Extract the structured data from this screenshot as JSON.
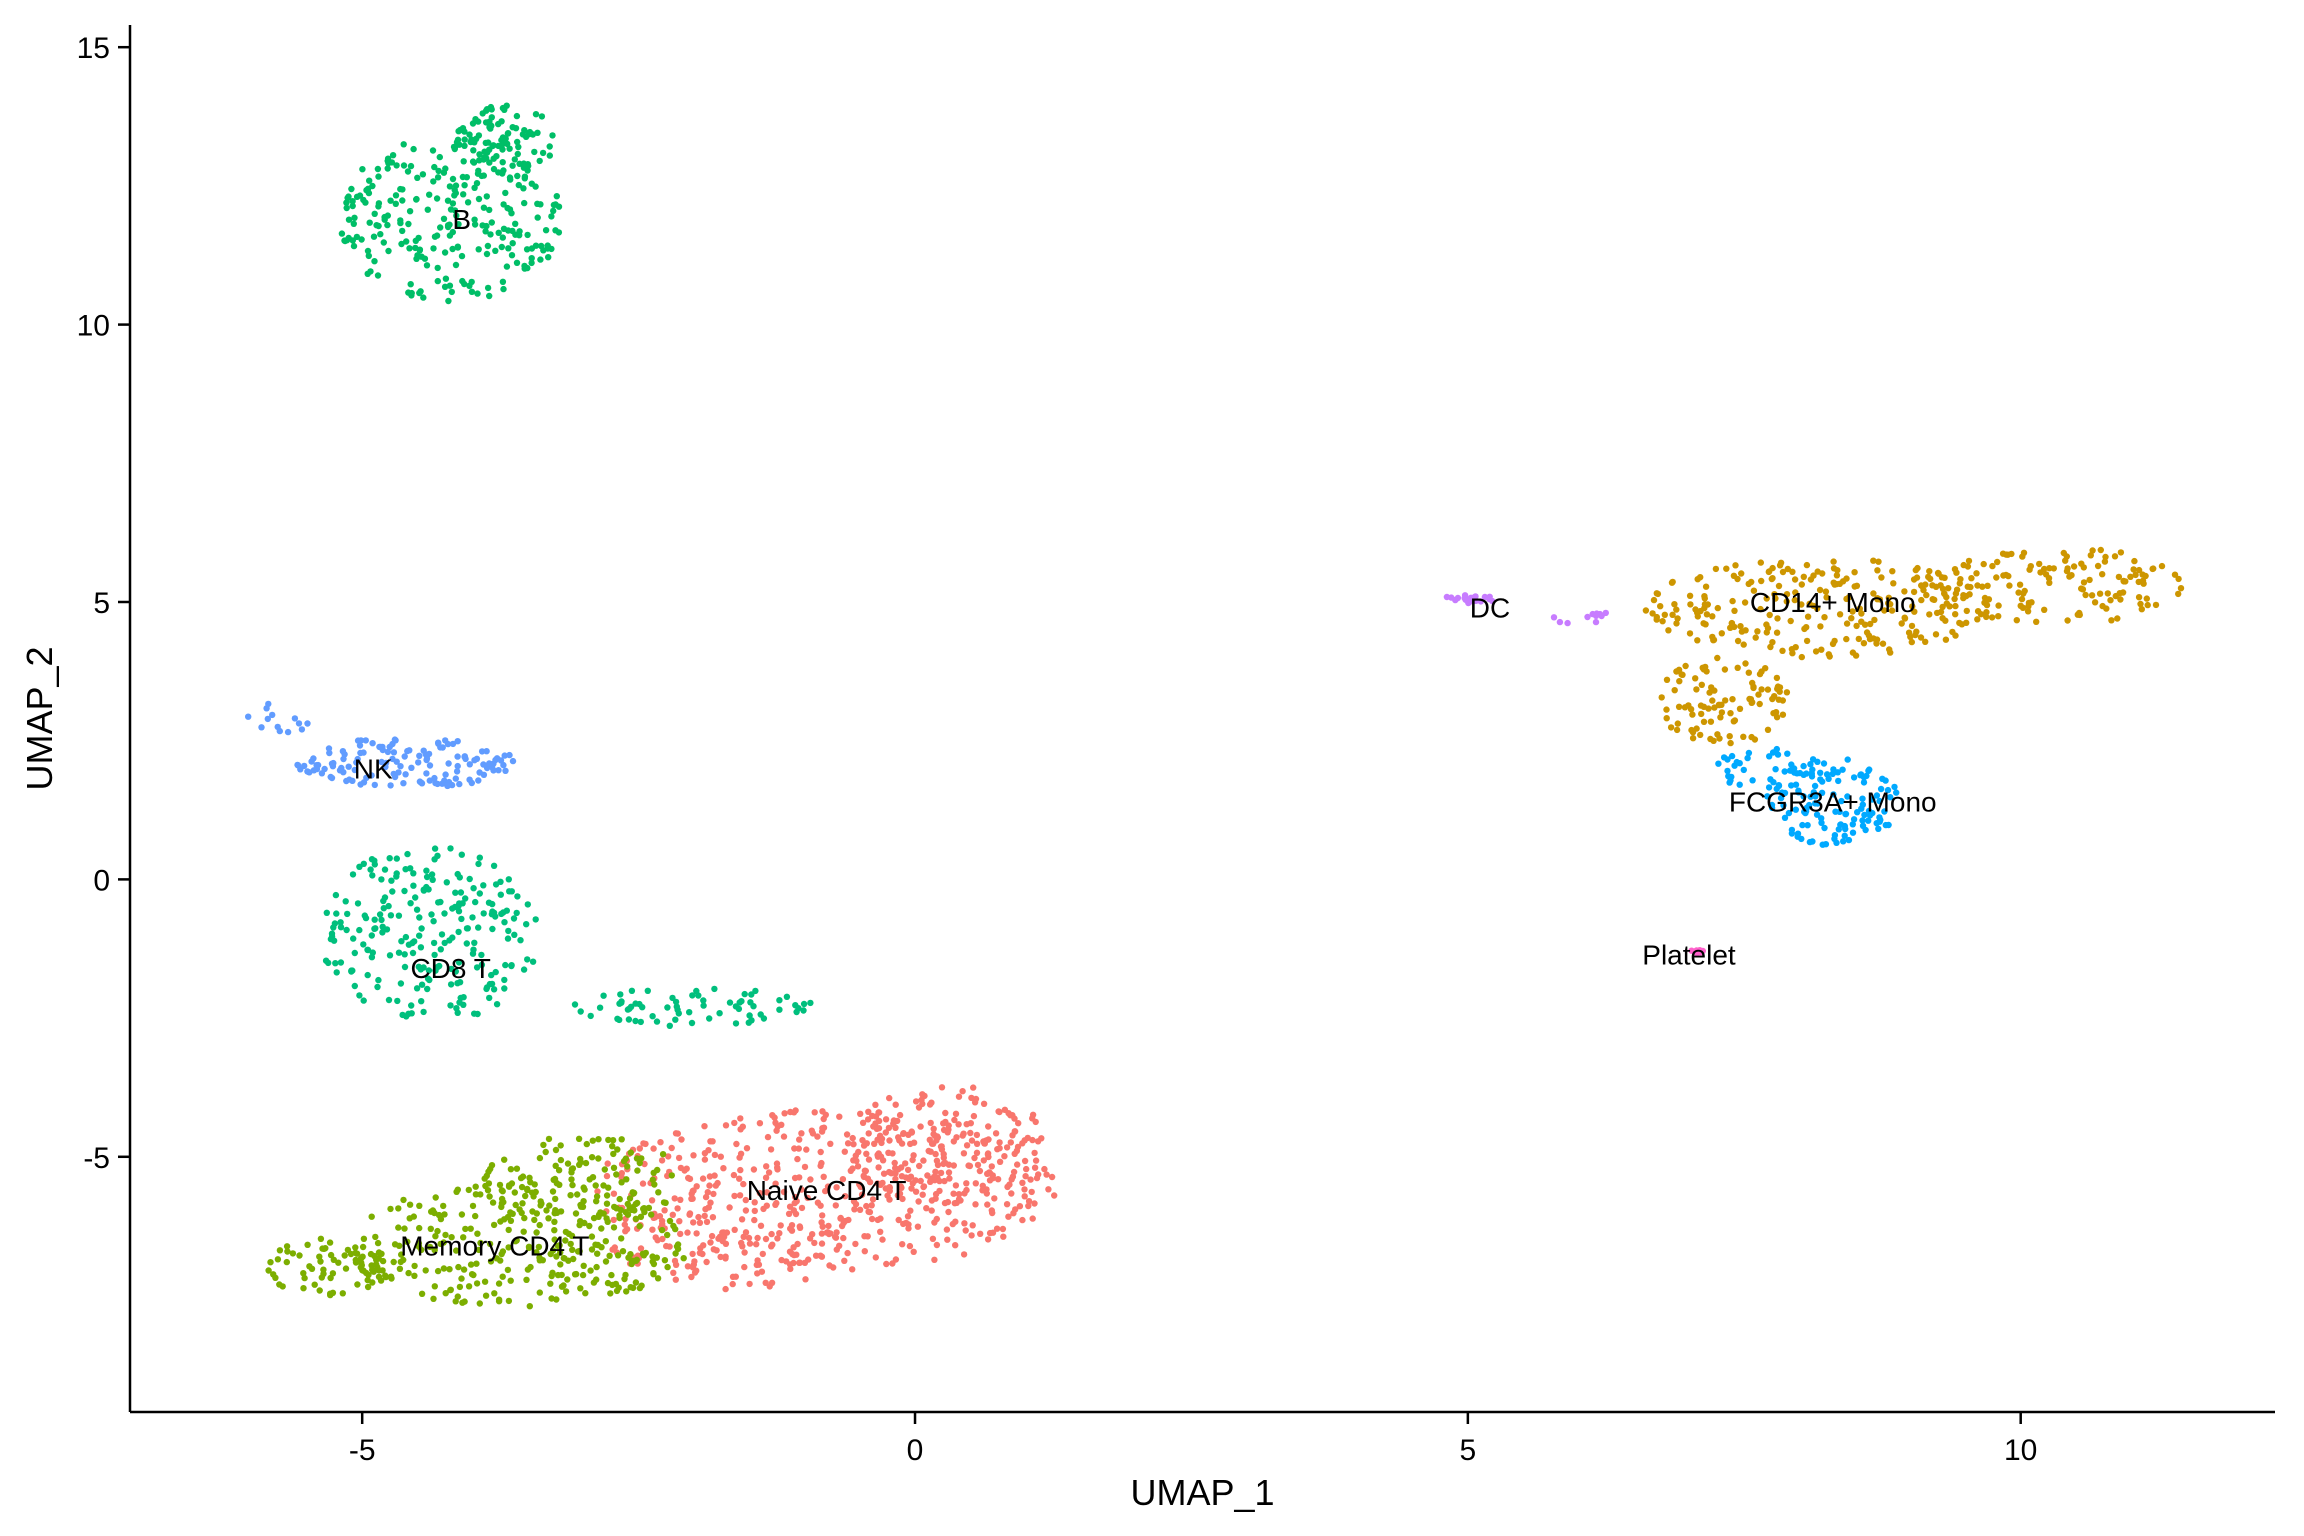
{
  "chart_data": {
    "type": "scatter",
    "title": "",
    "xlabel": "UMAP_1",
    "ylabel": "UMAP_2",
    "xlim": [
      -7.1,
      12.3
    ],
    "ylim": [
      -9.6,
      15.4
    ],
    "xticks": [
      {
        "value": -5,
        "label": "-5"
      },
      {
        "value": 0,
        "label": "0"
      },
      {
        "value": 5,
        "label": "5"
      },
      {
        "value": 10,
        "label": "10"
      }
    ],
    "yticks": [
      {
        "value": -5,
        "label": "-5"
      },
      {
        "value": 0,
        "label": "0"
      },
      {
        "value": 5,
        "label": "5"
      },
      {
        "value": 10,
        "label": "10"
      },
      {
        "value": 15,
        "label": "15"
      }
    ],
    "grid": false,
    "legend": "none",
    "series": [
      {
        "name": "Naive CD4 T",
        "color": "#F8766D",
        "label_at": [
          -0.8,
          -5.6
        ],
        "count": 700,
        "blobs": [
          {
            "cx": -0.8,
            "cy": -5.6,
            "rx": 2.1,
            "ry": 1.45,
            "w": 0.6
          },
          {
            "cx": 0.3,
            "cy": -4.8,
            "rx": 0.9,
            "ry": 1.1,
            "w": 0.25
          },
          {
            "cx": -1.6,
            "cy": -6.5,
            "rx": 1.2,
            "ry": 0.9,
            "w": 0.15
          }
        ]
      },
      {
        "name": "Memory CD4 T",
        "color": "#7CAE00",
        "label_at": [
          -3.8,
          -6.6
        ],
        "count": 480,
        "blobs": [
          {
            "cx": -3.6,
            "cy": -6.6,
            "rx": 1.55,
            "ry": 1.1,
            "w": 0.65
          },
          {
            "cx": -5.3,
            "cy": -7.0,
            "rx": 0.55,
            "ry": 0.55,
            "w": 0.12
          },
          {
            "cx": -3.0,
            "cy": -5.4,
            "rx": 0.9,
            "ry": 0.8,
            "w": 0.23
          }
        ]
      },
      {
        "name": "CD14+ Mono",
        "color": "#CD9600",
        "label_at": [
          8.3,
          5.0
        ],
        "count": 480,
        "blobs": [
          {
            "cx": 8.2,
            "cy": 4.9,
            "rx": 1.6,
            "ry": 0.9,
            "w": 0.5
          },
          {
            "cx": 10.3,
            "cy": 5.3,
            "rx": 1.2,
            "ry": 0.7,
            "w": 0.3
          },
          {
            "cx": 7.3,
            "cy": 3.2,
            "rx": 0.6,
            "ry": 0.8,
            "w": 0.2
          }
        ]
      },
      {
        "name": "B",
        "color": "#00BE67",
        "label_at": [
          -4.1,
          11.9
        ],
        "count": 340,
        "blobs": [
          {
            "cx": -4.2,
            "cy": 11.9,
            "rx": 1.0,
            "ry": 1.5,
            "w": 0.7
          },
          {
            "cx": -3.7,
            "cy": 13.3,
            "rx": 0.45,
            "ry": 0.7,
            "w": 0.3
          }
        ]
      },
      {
        "name": "CD8 T",
        "color": "#00BF7D",
        "label_at": [
          -4.2,
          -1.6
        ],
        "count": 300,
        "blobs": [
          {
            "cx": -4.4,
            "cy": -1.0,
            "rx": 1.0,
            "ry": 1.6,
            "w": 0.75
          },
          {
            "cx": -2.0,
            "cy": -2.3,
            "rx": 1.1,
            "ry": 0.35,
            "w": 0.25
          }
        ]
      },
      {
        "name": "FCGR3A+ Mono",
        "color": "#00A9FF",
        "label_at": [
          8.3,
          1.4
        ],
        "count": 160,
        "blobs": [
          {
            "cx": 8.3,
            "cy": 1.4,
            "rx": 0.6,
            "ry": 0.8,
            "w": 0.75
          },
          {
            "cx": 7.7,
            "cy": 2.0,
            "rx": 0.5,
            "ry": 0.4,
            "w": 0.25
          }
        ]
      },
      {
        "name": "NK",
        "color": "#619CFF",
        "label_at": [
          -4.9,
          2.0
        ],
        "count": 150,
        "blobs": [
          {
            "cx": -4.6,
            "cy": 2.1,
            "rx": 1.0,
            "ry": 0.45,
            "w": 0.9
          },
          {
            "cx": -5.8,
            "cy": 2.9,
            "rx": 0.35,
            "ry": 0.3,
            "w": 0.1
          }
        ]
      },
      {
        "name": "DC",
        "color": "#C77CFF",
        "label_at": [
          5.2,
          4.9
        ],
        "count": 32,
        "blobs": [
          {
            "cx": 5.0,
            "cy": 5.05,
            "rx": 0.25,
            "ry": 0.08,
            "w": 0.6
          },
          {
            "cx": 5.9,
            "cy": 4.75,
            "rx": 0.4,
            "ry": 0.15,
            "w": 0.4
          }
        ]
      },
      {
        "name": "Platelet",
        "color": "#FF61CC",
        "label_at": [
          7.0,
          -1.35
        ],
        "count": 8,
        "blobs": [
          {
            "cx": 7.05,
            "cy": -1.3,
            "rx": 0.08,
            "ry": 0.05,
            "w": 1.0
          }
        ]
      }
    ]
  }
}
